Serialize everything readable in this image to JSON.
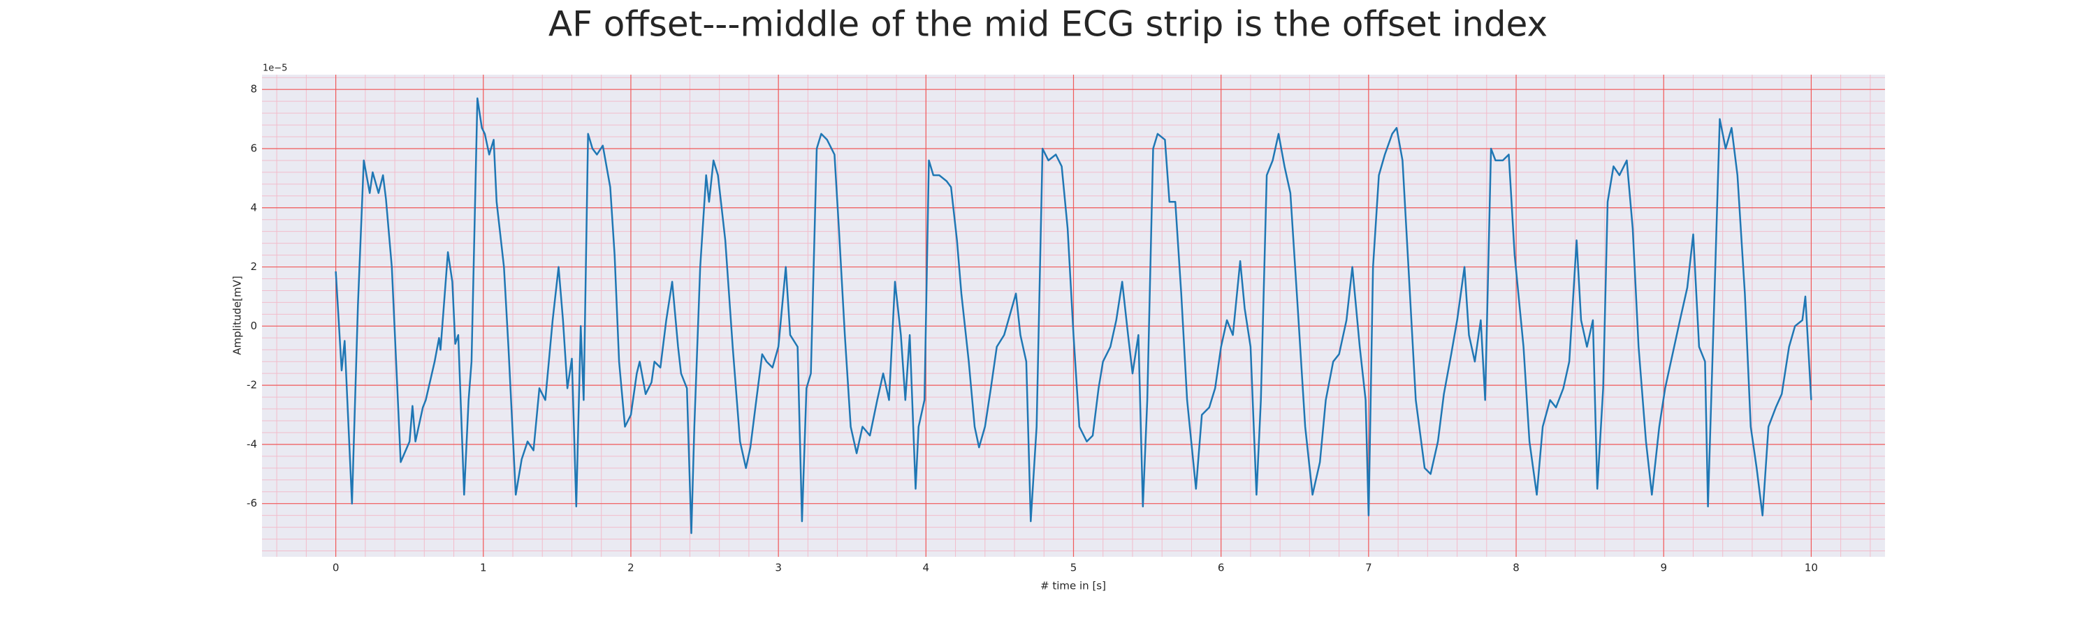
{
  "chart_data": {
    "type": "line",
    "title": "AF offset---middle of the mid ECG strip is the offset index",
    "xlabel": "# time in [s]",
    "ylabel": "Amplitude[mV]",
    "y_offset_label": "1e−5",
    "xlim": [
      -0.5,
      10.5
    ],
    "ylim": [
      -7.8,
      8.5
    ],
    "xticks": [
      0,
      1,
      2,
      3,
      4,
      5,
      6,
      7,
      8,
      9,
      10
    ],
    "yticks": [
      -6,
      -4,
      -2,
      0,
      2,
      4,
      6,
      8
    ],
    "grid": true,
    "grid_color": "#f05a5a",
    "minor_grid_color": "#f2bccb",
    "background": "#eaeaf2",
    "series": [
      {
        "color": "#1f77b4",
        "x": [
          0,
          0.04,
          0.06,
          0.11,
          0.15,
          0.19,
          0.23,
          0.25,
          0.29,
          0.32,
          0.34,
          0.38,
          0.44,
          0.5,
          0.52,
          0.54,
          0.59,
          0.61,
          0.67,
          0.7,
          0.71,
          0.76,
          0.79,
          0.81,
          0.83,
          0.87,
          0.9,
          0.92,
          0.96,
          0.99,
          1.01,
          1.04,
          1.07,
          1.09,
          1.14,
          1.17,
          1.22,
          1.26,
          1.3,
          1.34,
          1.38,
          1.42,
          1.47,
          1.51,
          1.54,
          1.57,
          1.6,
          1.63,
          1.66,
          1.68,
          1.71,
          1.74,
          1.77,
          1.81,
          1.86,
          1.89,
          1.92,
          1.96,
          2.0,
          2.04,
          2.06,
          2.1,
          2.14,
          2.16,
          2.2,
          2.24,
          2.28,
          2.32,
          2.34,
          2.38,
          2.41,
          2.43,
          2.47,
          2.51,
          2.53,
          2.56,
          2.59,
          2.64,
          2.69,
          2.74,
          2.78,
          2.81,
          2.85,
          2.89,
          2.92,
          2.96,
          3.0,
          3.05,
          3.08,
          3.13,
          3.16,
          3.19,
          3.22,
          3.26,
          3.29,
          3.33,
          3.38,
          3.41,
          3.45,
          3.49,
          3.53,
          3.57,
          3.62,
          3.67,
          3.71,
          3.75,
          3.79,
          3.83,
          3.86,
          3.89,
          3.93,
          3.95,
          3.99,
          4.02,
          4.05,
          4.09,
          4.14,
          4.17,
          4.21,
          4.24,
          4.29,
          4.33,
          4.36,
          4.4,
          4.44,
          4.48,
          4.53,
          4.57,
          4.61,
          4.64,
          4.68,
          4.71,
          4.75,
          4.79,
          4.83,
          4.88,
          4.92,
          4.96,
          5.0,
          5.04,
          5.09,
          5.13,
          5.17,
          5.2,
          5.25,
          5.29,
          5.33,
          5.37,
          5.4,
          5.44,
          5.47,
          5.5,
          5.54,
          5.57,
          5.62,
          5.65,
          5.69,
          5.73,
          5.77,
          5.83,
          5.87,
          5.92,
          5.96,
          6.0,
          6.04,
          6.08,
          6.13,
          6.16,
          6.2,
          6.24,
          6.27,
          6.31,
          6.35,
          6.39,
          6.43,
          6.47,
          6.52,
          6.57,
          6.62,
          6.67,
          6.71,
          6.76,
          6.8,
          6.85,
          6.89,
          6.94,
          6.98,
          7.0,
          7.03,
          7.07,
          7.11,
          7.16,
          7.19,
          7.23,
          7.27,
          7.32,
          7.38,
          7.42,
          7.47,
          7.51,
          7.56,
          7.6,
          7.65,
          7.68,
          7.72,
          7.76,
          7.79,
          7.83,
          7.86,
          7.91,
          7.95,
          7.99,
          8.05,
          8.09,
          8.14,
          8.18,
          8.23,
          8.27,
          8.32,
          8.36,
          8.41,
          8.44,
          8.48,
          8.52,
          8.55,
          8.59,
          8.62,
          8.66,
          8.7,
          8.75,
          8.79,
          8.83,
          8.88,
          8.92,
          8.97,
          9.01,
          9.06,
          9.11,
          9.16,
          9.2,
          9.24,
          9.28,
          9.3,
          9.35,
          9.38,
          9.42,
          9.46,
          9.5,
          9.55,
          9.59,
          9.63,
          9.67,
          9.71,
          9.76,
          9.8,
          9.85,
          9.89,
          9.94,
          9.96,
          10.0
        ],
        "values": [
          1.85,
          -1.5,
          -0.5,
          -6,
          0.7,
          5.6,
          4.5,
          5.2,
          4.5,
          5.1,
          4.3,
          2,
          -4.6,
          -3.9,
          -2.7,
          -3.9,
          -2.75,
          -2.5,
          -1.2,
          -0.4,
          -0.8,
          2.5,
          1.5,
          -0.6,
          -0.3,
          -5.7,
          -2.5,
          -1.2,
          7.7,
          6.7,
          6.5,
          5.8,
          6.3,
          4.2,
          2,
          -0.7,
          -5.7,
          -4.5,
          -3.9,
          -4.2,
          -2.1,
          -2.5,
          0.2,
          2,
          0.2,
          -2.1,
          -1.1,
          -6.1,
          0,
          -2.5,
          6.5,
          6,
          5.8,
          6.1,
          4.7,
          2.4,
          -1.2,
          -3.4,
          -3,
          -1.6,
          -1.2,
          -2.3,
          -1.9,
          -1.2,
          -1.4,
          0.2,
          1.5,
          -0.7,
          -1.6,
          -2.1,
          -7,
          -3.4,
          2,
          5.1,
          4.2,
          5.6,
          5.1,
          2.9,
          -0.7,
          -3.9,
          -4.8,
          -4.1,
          -2.5,
          -0.95,
          -1.2,
          -1.4,
          -0.7,
          2,
          -0.3,
          -0.7,
          -6.6,
          -2.1,
          -1.6,
          6,
          6.5,
          6.3,
          5.8,
          3.3,
          -0.3,
          -3.4,
          -4.3,
          -3.4,
          -3.7,
          -2.5,
          -1.6,
          -2.5,
          1.5,
          -0.3,
          -2.5,
          -0.3,
          -5.5,
          -3.4,
          -2.5,
          5.6,
          5.1,
          5.1,
          4.9,
          4.7,
          2.9,
          1.1,
          -1.2,
          -3.4,
          -4.1,
          -3.4,
          -2.1,
          -0.7,
          -0.3,
          0.4,
          1.1,
          -0.3,
          -1.2,
          -6.6,
          -3.4,
          6,
          5.6,
          5.8,
          5.4,
          3.3,
          -0.3,
          -3.4,
          -3.9,
          -3.7,
          -2.1,
          -1.2,
          -0.7,
          0.2,
          1.5,
          -0.3,
          -1.6,
          -0.3,
          -6.1,
          -2.5,
          6,
          6.5,
          6.3,
          4.2,
          4.2,
          1.1,
          -2.5,
          -5.5,
          -3,
          -2.75,
          -2.1,
          -0.7,
          0.2,
          -0.3,
          2.2,
          0.6,
          -0.7,
          -5.7,
          -2.5,
          5.1,
          5.6,
          6.5,
          5.4,
          4.5,
          0.6,
          -3.4,
          -5.7,
          -4.6,
          -2.5,
          -1.2,
          -0.95,
          0.2,
          2,
          -0.7,
          -2.5,
          -6.4,
          2,
          5.1,
          5.8,
          6.5,
          6.7,
          5.6,
          2,
          -2.5,
          -4.8,
          -5,
          -3.9,
          -2.3,
          -0.95,
          0.2,
          2,
          -0.3,
          -1.2,
          0.2,
          -2.5,
          6,
          5.6,
          5.6,
          5.8,
          2.4,
          -0.7,
          -3.9,
          -5.7,
          -3.4,
          -2.5,
          -2.75,
          -2.1,
          -1.2,
          2.9,
          0.2,
          -0.7,
          0.2,
          -5.5,
          -2.1,
          4.2,
          5.4,
          5.1,
          5.6,
          3.3,
          -0.7,
          -3.9,
          -5.7,
          -3.4,
          -2.1,
          -0.95,
          0.2,
          1.3,
          3.1,
          -0.7,
          -1.2,
          -6.1,
          2,
          7,
          6,
          6.7,
          5.1,
          1.1,
          -3.4,
          -4.8,
          -6.4,
          -3.4,
          -2.75,
          -2.3,
          -0.7,
          0,
          0.2,
          1,
          -2.5
        ]
      }
    ]
  }
}
